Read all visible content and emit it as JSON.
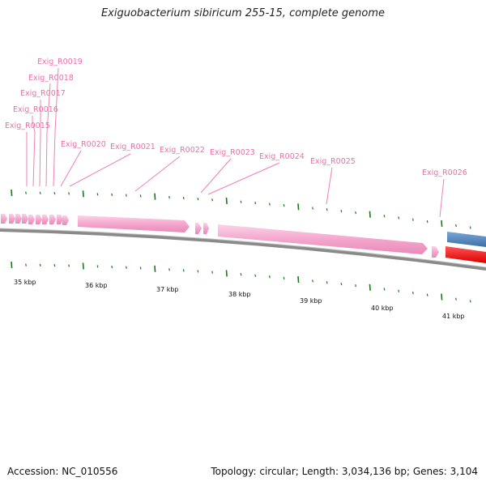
{
  "title": "Exiguobacterium sibiricum 255-15, complete genome",
  "footer": {
    "accession": "Accession: NC_010556",
    "topology": "Topology: circular; Length: 3,034,136 bp; Genes: 3,104"
  },
  "colors": {
    "rna_feature": "#f4a6cd",
    "rna_label": "#ee6fa9",
    "tick": "#1a7a1a",
    "backbone": "#8a8a8a",
    "forward_gene": "#4a7fb5",
    "reverse_gene": "#ee1111"
  },
  "feature_labels": [
    "Exig_R0015",
    "Exig_R0016",
    "Exig_R0017",
    "Exig_R0018",
    "Exig_R0019",
    "Exig_R0020",
    "Exig_R0021",
    "Exig_R0022",
    "Exig_R0023",
    "Exig_R0024",
    "Exig_R0025",
    "Exig_R0026"
  ],
  "scale_labels": [
    "35 kbp",
    "36 kbp",
    "37 kbp",
    "38 kbp",
    "39 kbp",
    "40 kbp",
    "41 kbp"
  ]
}
